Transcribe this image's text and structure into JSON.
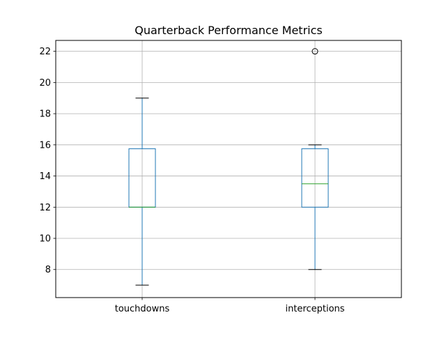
{
  "chart_data": {
    "type": "box",
    "title": "Quarterback Performance Metrics",
    "xlabel": "",
    "ylabel": "",
    "categories": [
      "touchdowns",
      "interceptions"
    ],
    "ylim": [
      6.2,
      22.7
    ],
    "yticks": [
      8,
      10,
      12,
      14,
      16,
      18,
      20,
      22
    ],
    "grid": true,
    "boxes": [
      {
        "name": "touchdowns",
        "whisker_low": 7,
        "q1": 12,
        "median": 12,
        "q3": 15.75,
        "whisker_high": 19,
        "outliers": []
      },
      {
        "name": "interceptions",
        "whisker_low": 8,
        "q1": 12,
        "median": 13.5,
        "q3": 15.75,
        "whisker_high": 16,
        "outliers": [
          22
        ]
      }
    ],
    "colors": {
      "box": "#1f77b4",
      "median": "#2ca02c",
      "whisker_cap": "#000000",
      "grid": "#b0b0b0",
      "axis": "#000000"
    }
  }
}
